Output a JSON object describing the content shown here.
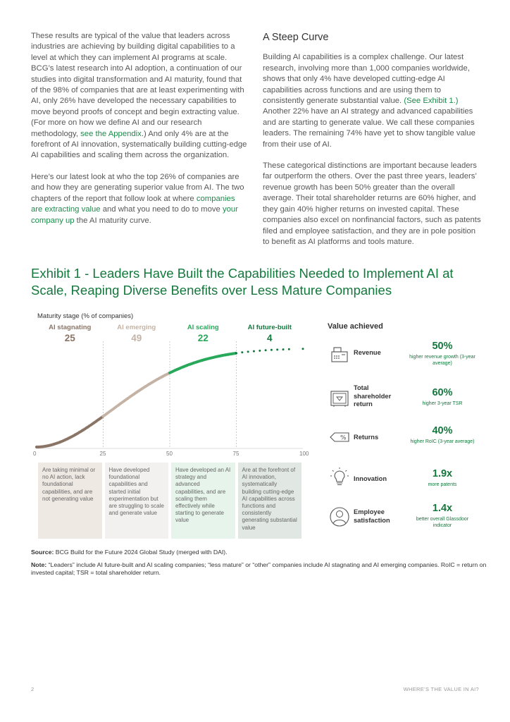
{
  "left_column": {
    "p1_a": "These results are typical of the value that leaders across industries are achieving by building digital capabilities to a level at which they can implement AI programs at scale. BCG’s latest research into AI adoption, a continuation of our studies into digital transformation and AI maturity, found that of the 98% of companies that are at least experimenting with AI, only 26% have developed the necessary capabilities to move beyond proofs of concept and begin extracting value. (For more on how we define AI and our research methodology, ",
    "p1_link": "see the Appendix",
    "p1_b": ".) And only 4% are at the forefront of AI innovation, systematically building cutting-edge AI capabilities and scaling them across the organization.",
    "p2_a": "Here’s our latest look at who the top 26% of companies are and how they are generating superior value from AI. The two chapters of the report that follow look at where ",
    "p2_link1": "companies are extracting value",
    "p2_b": " and what you need to do to move ",
    "p2_link2": "your company up",
    "p2_c": " the AI maturity curve."
  },
  "right_column": {
    "heading": "A Steep Curve",
    "p1_a": "Building AI capabilities is a complex challenge. Our latest research, involving more than 1,000 companies worldwide, shows that only 4% have developed cutting-edge AI capabilities across functions and are using them to consistently generate substantial value. ",
    "p1_link": "(See Exhibit 1.)",
    "p1_b": " Another 22% have an AI strategy and advanced capabilities and are starting to generate value. We call these companies leaders. The remaining 74% have yet to show tangible value from their use of AI.",
    "p2": "These categorical distinctions are important because leaders far outperform the others. Over the past three years, leaders’ revenue growth has been 50% greater than the overall average. Their total shareholder returns are 60% higher, and they gain 40% higher returns on invested capital. These companies also excel on nonfinancial factors, such as patents filed and employee satisfaction, and they are in pole position to benefit as AI platforms and tools mature."
  },
  "exhibit": {
    "title": "Exhibit 1 - Leaders Have Built the Capabilities Needed to Implement AI at Scale, Reaping Diverse Benefits over Less Mature Companies"
  },
  "chart_data": {
    "type": "line",
    "title": "",
    "ylabel": "Maturity stage (% of companies)",
    "xlabel": "",
    "xlim": [
      0,
      100
    ],
    "x_ticks": [
      "0",
      "25",
      "50",
      "75",
      "100"
    ],
    "stages": [
      {
        "name": "AI stagnating",
        "value": "25",
        "color": "#8a7466",
        "range": [
          0,
          25
        ],
        "description": "Are taking minimal or no AI action, lack foundational capabilities, and are not generating value"
      },
      {
        "name": "AI emerging",
        "value": "49",
        "color": "#c4b3a5",
        "range": [
          25,
          50
        ],
        "description": "Have developed foundational capabilities and started initial experimentation but are struggling to scale and generate value"
      },
      {
        "name": "AI scaling",
        "value": "22",
        "color": "#28a85a",
        "range": [
          50,
          75
        ],
        "description": "Have developed an AI strategy and advanced capabilities, and are scaling them effectively while starting to generate value"
      },
      {
        "name": "AI future-built",
        "value": "4",
        "color": "#13783d",
        "range": [
          75,
          100
        ],
        "description": "Are at the forefront of AI innovation, systematically building cutting-edge AI capabilities across functions and consistently generating substantial value"
      }
    ]
  },
  "value_panel": {
    "title": "Value achieved",
    "items": [
      {
        "icon": "cash-register-icon",
        "label": "Revenue",
        "value": "50%",
        "sub": "higher revenue growth (3-year average)"
      },
      {
        "icon": "safe-icon",
        "label": "Total shareholder return",
        "value": "60%",
        "sub": "higher 3-year TSR"
      },
      {
        "icon": "percent-tag-icon",
        "label": "Returns",
        "value": "40%",
        "sub": "higher RoIC (3-year average)"
      },
      {
        "icon": "lightbulb-icon",
        "label": "Innovation",
        "value": "1.9x",
        "sub": "more patents"
      },
      {
        "icon": "employee-icon",
        "label": "Employee satisfaction",
        "value": "1.4x",
        "sub": "better overall Glassdoor indicator"
      }
    ]
  },
  "source": {
    "source_label": "Source:",
    "source_text": " BCG Build for the Future 2024 Global Study (merged with DAI).",
    "note_label": "Note:",
    "note_text": " “Leaders” include AI future-built and AI scaling companies; “less mature” or “other” companies include AI stagnating and AI emerging companies. RoIC = return on invested capital; TSR = total shareholder return."
  },
  "footer": {
    "page_number": "2",
    "running_title": "WHERE’S THE VALUE IN AI?"
  }
}
